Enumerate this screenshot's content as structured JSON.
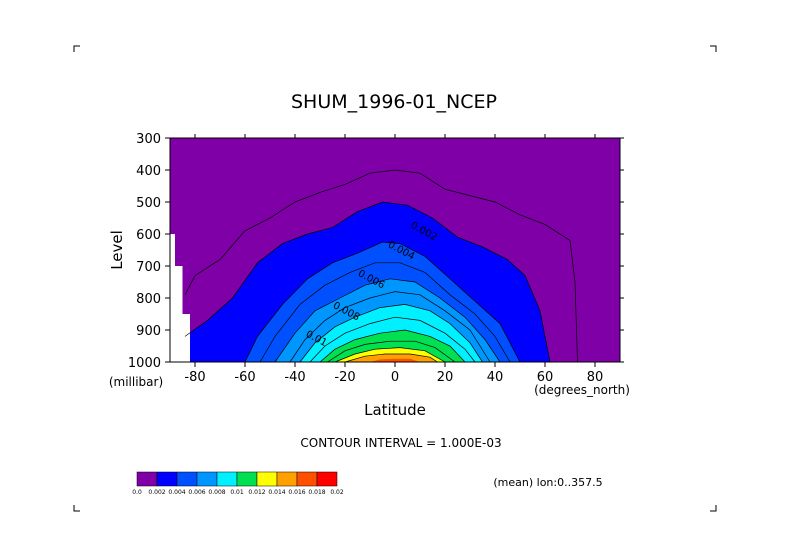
{
  "chart_data": {
    "type": "contour",
    "title": "SHUM_1996-01_NCEP",
    "xlabel": "Latitude",
    "ylabel": "Level",
    "x_unit": "(degrees_north)",
    "y_unit": "(millibar)",
    "xlim": [
      -90,
      90
    ],
    "ylim": [
      300,
      1000
    ],
    "y_inverted": true,
    "x_ticks": [
      -80,
      -60,
      -40,
      -20,
      0,
      20,
      40,
      60,
      80
    ],
    "y_ticks": [
      300,
      400,
      500,
      600,
      700,
      800,
      900,
      1000
    ],
    "contour_interval_text": "CONTOUR INTERVAL = 1.000E-03",
    "subtitle": "(mean) lon:0..357.5",
    "contour_labels": [
      {
        "text": "0.002",
        "x": 11,
        "y": 600
      },
      {
        "text": "0.004",
        "x": 2,
        "y": 660
      },
      {
        "text": "0.006",
        "x": -10,
        "y": 750
      },
      {
        "text": "0.008",
        "x": -20,
        "y": 850
      },
      {
        "text": "0.01",
        "x": -32,
        "y": 935
      }
    ],
    "colorbar": {
      "levels": [
        "0.0",
        "0.002",
        "0.004",
        "0.006",
        "0.008",
        "0.01",
        "0.012",
        "0.014",
        "0.016",
        "0.018",
        "0.02"
      ],
      "colors": [
        "#7f00a6",
        "#0000ff",
        "#0050ff",
        "#0096ff",
        "#00f0ff",
        "#00e050",
        "#ffff00",
        "#ffa000",
        "#ff5000",
        "#ff0000"
      ]
    },
    "missing_region": [
      {
        "xmin": -90,
        "xmax": -88,
        "ymin": 600,
        "ymax": 1000
      },
      {
        "xmin": -88,
        "xmax": -85,
        "ymin": 700,
        "ymax": 1000
      },
      {
        "xmin": -85,
        "xmax": -82,
        "ymin": 850,
        "ymax": 1000
      }
    ],
    "contours": [
      {
        "level": 0.002,
        "points": [
          [
            -84,
            790
          ],
          [
            -80,
            730
          ],
          [
            -70,
            680
          ],
          [
            -60,
            590
          ],
          [
            -50,
            550
          ],
          [
            -40,
            500
          ],
          [
            -30,
            470
          ],
          [
            -20,
            445
          ],
          [
            -10,
            410
          ],
          [
            0,
            400
          ],
          [
            10,
            410
          ],
          [
            20,
            460
          ],
          [
            30,
            480
          ],
          [
            40,
            500
          ],
          [
            50,
            540
          ],
          [
            60,
            570
          ],
          [
            70,
            620
          ],
          [
            72,
            750
          ],
          [
            73,
            1000
          ]
        ]
      },
      {
        "level": 0.003,
        "points": [
          [
            -84,
            920
          ],
          [
            -75,
            870
          ],
          [
            -65,
            800
          ],
          [
            -55,
            690
          ],
          [
            -45,
            630
          ],
          [
            -35,
            600
          ],
          [
            -25,
            580
          ],
          [
            -15,
            530
          ],
          [
            -5,
            500
          ],
          [
            5,
            510
          ],
          [
            15,
            550
          ],
          [
            25,
            610
          ],
          [
            35,
            640
          ],
          [
            45,
            680
          ],
          [
            52,
            730
          ],
          [
            58,
            840
          ],
          [
            62,
            1000
          ]
        ]
      },
      {
        "level": 0.004,
        "points": [
          [
            -60,
            1000
          ],
          [
            -55,
            920
          ],
          [
            -45,
            820
          ],
          [
            -35,
            740
          ],
          [
            -25,
            690
          ],
          [
            -15,
            660
          ],
          [
            -5,
            625
          ],
          [
            2,
            630
          ],
          [
            12,
            670
          ],
          [
            22,
            740
          ],
          [
            32,
            810
          ],
          [
            42,
            880
          ],
          [
            50,
            1000
          ]
        ]
      },
      {
        "level": 0.005,
        "points": [
          [
            -54,
            1000
          ],
          [
            -48,
            920
          ],
          [
            -38,
            820
          ],
          [
            -28,
            760
          ],
          [
            -18,
            720
          ],
          [
            -8,
            690
          ],
          [
            2,
            690
          ],
          [
            12,
            720
          ],
          [
            22,
            790
          ],
          [
            32,
            850
          ],
          [
            40,
            920
          ],
          [
            46,
            1000
          ]
        ]
      },
      {
        "level": 0.006,
        "points": [
          [
            -48,
            1000
          ],
          [
            -40,
            910
          ],
          [
            -32,
            840
          ],
          [
            -22,
            800
          ],
          [
            -12,
            760
          ],
          [
            -2,
            740
          ],
          [
            8,
            750
          ],
          [
            18,
            800
          ],
          [
            28,
            860
          ],
          [
            36,
            930
          ],
          [
            42,
            1000
          ]
        ]
      },
      {
        "level": 0.007,
        "points": [
          [
            -42,
            1000
          ],
          [
            -36,
            930
          ],
          [
            -28,
            870
          ],
          [
            -20,
            830
          ],
          [
            -10,
            800
          ],
          [
            0,
            780
          ],
          [
            10,
            790
          ],
          [
            20,
            840
          ],
          [
            30,
            900
          ],
          [
            38,
            1000
          ]
        ]
      },
      {
        "level": 0.008,
        "points": [
          [
            -38,
            1000
          ],
          [
            -32,
            940
          ],
          [
            -24,
            890
          ],
          [
            -16,
            860
          ],
          [
            -6,
            830
          ],
          [
            4,
            820
          ],
          [
            14,
            840
          ],
          [
            22,
            880
          ],
          [
            30,
            940
          ],
          [
            35,
            1000
          ]
        ]
      },
      {
        "level": 0.009,
        "points": [
          [
            -34,
            1000
          ],
          [
            -28,
            950
          ],
          [
            -20,
            910
          ],
          [
            -10,
            880
          ],
          [
            0,
            860
          ],
          [
            10,
            870
          ],
          [
            20,
            910
          ],
          [
            28,
            960
          ],
          [
            32,
            1000
          ]
        ]
      },
      {
        "level": 0.01,
        "points": [
          [
            -30,
            1000
          ],
          [
            -24,
            960
          ],
          [
            -16,
            930
          ],
          [
            -6,
            910
          ],
          [
            4,
            900
          ],
          [
            14,
            920
          ],
          [
            22,
            950
          ],
          [
            28,
            1000
          ]
        ]
      },
      {
        "level": 0.011,
        "points": [
          [
            -27,
            1000
          ],
          [
            -20,
            965
          ],
          [
            -12,
            945
          ],
          [
            -2,
            935
          ],
          [
            8,
            935
          ],
          [
            16,
            955
          ],
          [
            24,
            1000
          ]
        ]
      },
      {
        "level": 0.012,
        "points": [
          [
            -24,
            1000
          ],
          [
            -16,
            975
          ],
          [
            -8,
            960
          ],
          [
            2,
            955
          ],
          [
            12,
            965
          ],
          [
            20,
            1000
          ]
        ]
      },
      {
        "level": 0.013,
        "points": [
          [
            -20,
            1000
          ],
          [
            -12,
            982
          ],
          [
            -4,
            975
          ],
          [
            6,
            975
          ],
          [
            14,
            985
          ],
          [
            17,
            1000
          ]
        ]
      }
    ],
    "filled_bands": [
      {
        "band": "0.002-0.004",
        "color": "#0000ff",
        "points": [
          [
            -84,
            1000
          ],
          [
            -84,
            920
          ],
          [
            -75,
            870
          ],
          [
            -65,
            800
          ],
          [
            -55,
            690
          ],
          [
            -45,
            630
          ],
          [
            -35,
            600
          ],
          [
            -25,
            580
          ],
          [
            -15,
            530
          ],
          [
            -5,
            500
          ],
          [
            5,
            510
          ],
          [
            15,
            550
          ],
          [
            25,
            610
          ],
          [
            35,
            640
          ],
          [
            45,
            680
          ],
          [
            52,
            730
          ],
          [
            58,
            840
          ],
          [
            62,
            1000
          ]
        ]
      },
      {
        "band": "0.004-0.006",
        "color": "#0050ff",
        "points": [
          [
            -60,
            1000
          ],
          [
            -55,
            920
          ],
          [
            -45,
            820
          ],
          [
            -35,
            740
          ],
          [
            -25,
            690
          ],
          [
            -15,
            660
          ],
          [
            -5,
            625
          ],
          [
            2,
            630
          ],
          [
            12,
            670
          ],
          [
            22,
            740
          ],
          [
            32,
            810
          ],
          [
            42,
            880
          ],
          [
            50,
            1000
          ]
        ]
      },
      {
        "band": "0.006-0.008",
        "color": "#0096ff",
        "points": [
          [
            -48,
            1000
          ],
          [
            -40,
            910
          ],
          [
            -32,
            840
          ],
          [
            -22,
            800
          ],
          [
            -12,
            760
          ],
          [
            -2,
            740
          ],
          [
            8,
            750
          ],
          [
            18,
            800
          ],
          [
            28,
            860
          ],
          [
            36,
            930
          ],
          [
            42,
            1000
          ]
        ]
      },
      {
        "band": "0.008-0.01",
        "color": "#00f0ff",
        "points": [
          [
            -38,
            1000
          ],
          [
            -32,
            940
          ],
          [
            -24,
            890
          ],
          [
            -16,
            860
          ],
          [
            -6,
            830
          ],
          [
            4,
            820
          ],
          [
            14,
            840
          ],
          [
            22,
            880
          ],
          [
            30,
            940
          ],
          [
            35,
            1000
          ]
        ]
      },
      {
        "band": "0.01-0.012",
        "color": "#00e050",
        "points": [
          [
            -30,
            1000
          ],
          [
            -24,
            960
          ],
          [
            -16,
            930
          ],
          [
            -6,
            910
          ],
          [
            4,
            900
          ],
          [
            14,
            920
          ],
          [
            22,
            950
          ],
          [
            28,
            1000
          ]
        ]
      },
      {
        "band": "0.012-0.014",
        "color": "#ffff00",
        "points": [
          [
            -24,
            1000
          ],
          [
            -16,
            975
          ],
          [
            -8,
            960
          ],
          [
            2,
            955
          ],
          [
            12,
            965
          ],
          [
            20,
            1000
          ]
        ]
      },
      {
        "band": "0.014-0.016",
        "color": "#ffa000",
        "points": [
          [
            -20,
            1000
          ],
          [
            -12,
            982
          ],
          [
            -4,
            975
          ],
          [
            6,
            975
          ],
          [
            14,
            985
          ],
          [
            17,
            1000
          ]
        ]
      },
      {
        "band": "0.016-0.018",
        "color": "#ff5000",
        "points": [
          [
            -10,
            1000
          ],
          [
            -6,
            992
          ],
          [
            0,
            990
          ],
          [
            6,
            990
          ],
          [
            10,
            1000
          ]
        ]
      }
    ]
  }
}
